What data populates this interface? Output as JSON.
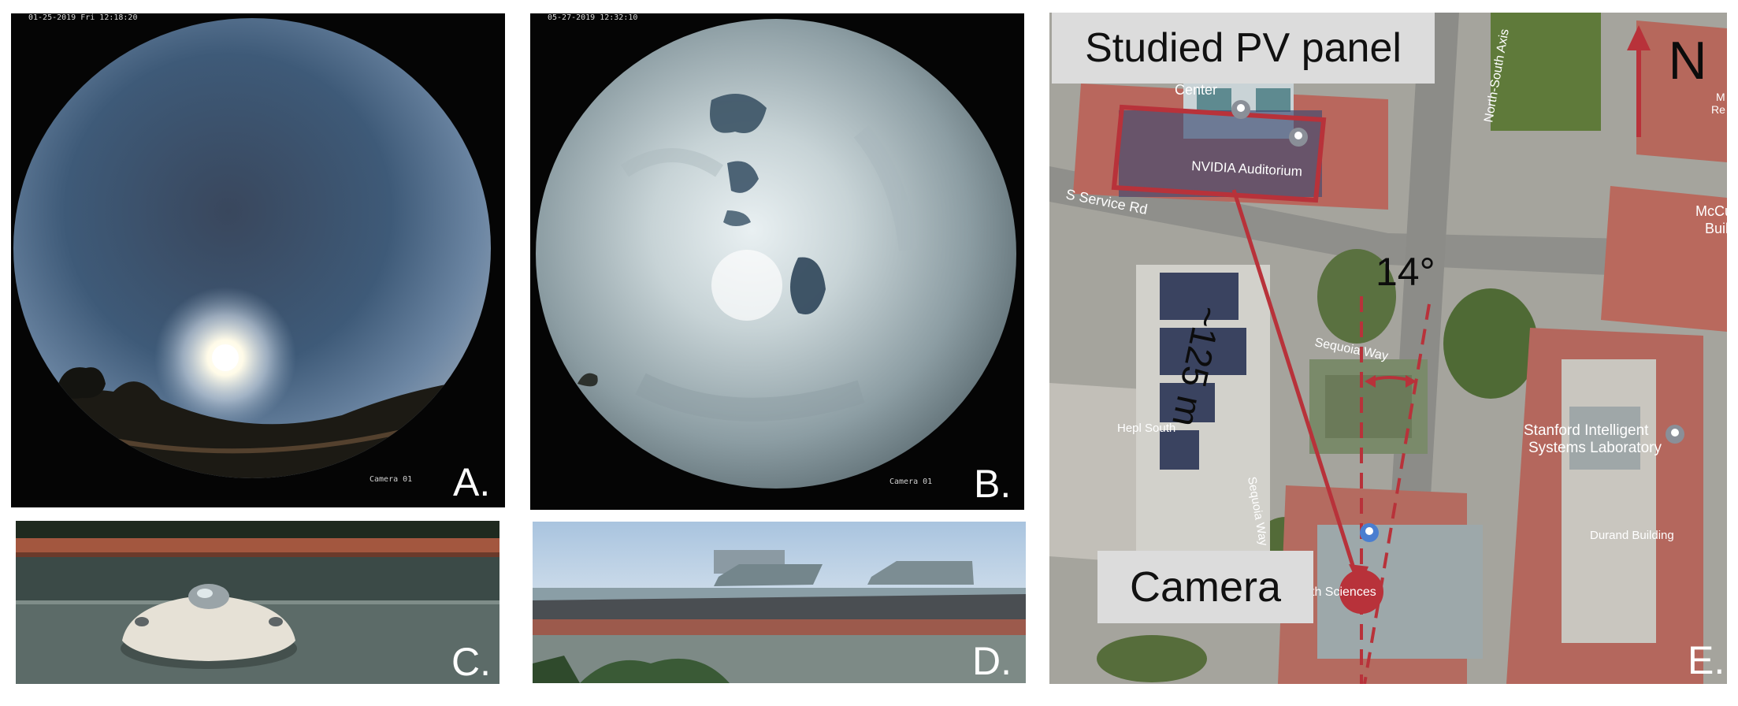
{
  "panels": {
    "a": {
      "letter": "A.",
      "timestamp": "01-25-2019 Fri 12:18:20",
      "camera_label": "Camera 01"
    },
    "b": {
      "letter": "B.",
      "timestamp": "05-27-2019 12:32:10",
      "camera_label": "Camera 01"
    },
    "c": {
      "letter": "C."
    },
    "d": {
      "letter": "D."
    },
    "e": {
      "letter": "E.",
      "pv_callout": "Studied PV panel",
      "camera_callout": "Camera",
      "north_label": "N",
      "angle_label": "14°",
      "distance_label": "~125 m",
      "map_labels": {
        "center": "Center",
        "nvidia": "NVIDIA Auditorium",
        "service_rd": "S Service Rd",
        "north_south_axis": "North-South Axis",
        "sequoia_way_h": "Sequoia Way",
        "sequoia_way_v": "Sequoia Way",
        "hepl_south": "Hepl South",
        "stanford_lab_1": "Stanford Intelligent",
        "stanford_lab_2": "Systems Laboratory",
        "durand": "Durand Building",
        "mccu": "McCu",
        "buil": "Buil",
        "mre_1": "M",
        "mre_2": "Re",
        "th_sciences": "th Sciences"
      }
    }
  },
  "colors": {
    "annotation_red": "#b8323a",
    "callout_bg": "#dcdcdc"
  }
}
